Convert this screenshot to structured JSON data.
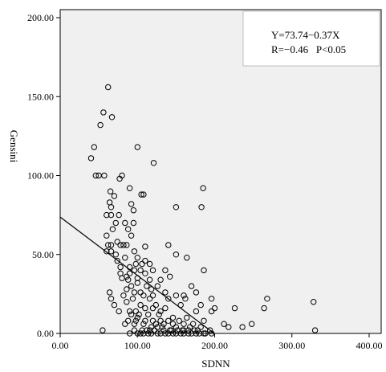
{
  "chart_data": {
    "type": "scatter",
    "title": "",
    "xlabel": "SDNN",
    "ylabel": "Gensini",
    "xlim": [
      0,
      400
    ],
    "ylim": [
      0,
      200
    ],
    "x_ticks": [
      "0.00",
      "100.00",
      "200.00",
      "300.00",
      "400.00"
    ],
    "y_ticks": [
      "0.00",
      "50.00",
      "100.00",
      "150.00",
      "200.00"
    ],
    "grid": false,
    "plot_background": "#f0f0f0",
    "marker_color": "#000000",
    "annotation": {
      "equation": "Y=73.74−0.37X",
      "stats": "R=−0.46   P<0.05",
      "placement": "top-right"
    },
    "regression_line": {
      "intercept": 73.74,
      "slope": -0.37,
      "x_range": [
        0,
        199.3
      ]
    },
    "points": [
      [
        62,
        156
      ],
      [
        56,
        140
      ],
      [
        67,
        137
      ],
      [
        52,
        132
      ],
      [
        44,
        118
      ],
      [
        100,
        118
      ],
      [
        121,
        108
      ],
      [
        40,
        111
      ],
      [
        46,
        100
      ],
      [
        50,
        100
      ],
      [
        57,
        100
      ],
      [
        80,
        100
      ],
      [
        77,
        98
      ],
      [
        65,
        90
      ],
      [
        90,
        92
      ],
      [
        185,
        92
      ],
      [
        70,
        87
      ],
      [
        105,
        88
      ],
      [
        108,
        88
      ],
      [
        64,
        83
      ],
      [
        66,
        80
      ],
      [
        92,
        82
      ],
      [
        95,
        78
      ],
      [
        150,
        80
      ],
      [
        183,
        80
      ],
      [
        60,
        75
      ],
      [
        66,
        75
      ],
      [
        76,
        75
      ],
      [
        72,
        70
      ],
      [
        84,
        70
      ],
      [
        95,
        70
      ],
      [
        88,
        66
      ],
      [
        68,
        66
      ],
      [
        60,
        62
      ],
      [
        92,
        62
      ],
      [
        74,
        58
      ],
      [
        62,
        56
      ],
      [
        66,
        56
      ],
      [
        82,
        56
      ],
      [
        78,
        56
      ],
      [
        86,
        56
      ],
      [
        110,
        55
      ],
      [
        140,
        56
      ],
      [
        60,
        52
      ],
      [
        96,
        52
      ],
      [
        66,
        52
      ],
      [
        72,
        50
      ],
      [
        84,
        48
      ],
      [
        100,
        48
      ],
      [
        150,
        50
      ],
      [
        164,
        48
      ],
      [
        74,
        46
      ],
      [
        90,
        42
      ],
      [
        106,
        44
      ],
      [
        116,
        44
      ],
      [
        96,
        40
      ],
      [
        104,
        40
      ],
      [
        120,
        40
      ],
      [
        136,
        40
      ],
      [
        186,
        40
      ],
      [
        78,
        38
      ],
      [
        90,
        38
      ],
      [
        110,
        38
      ],
      [
        80,
        35
      ],
      [
        100,
        35
      ],
      [
        116,
        34
      ],
      [
        142,
        36
      ],
      [
        130,
        34
      ],
      [
        170,
        30
      ],
      [
        176,
        26
      ],
      [
        64,
        26
      ],
      [
        86,
        28
      ],
      [
        104,
        26
      ],
      [
        112,
        30
      ],
      [
        136,
        26
      ],
      [
        150,
        24
      ],
      [
        160,
        24
      ],
      [
        196,
        22
      ],
      [
        66,
        22
      ],
      [
        94,
        22
      ],
      [
        116,
        22
      ],
      [
        140,
        22
      ],
      [
        162,
        22
      ],
      [
        182,
        18
      ],
      [
        200,
        16
      ],
      [
        70,
        18
      ],
      [
        86,
        20
      ],
      [
        104,
        18
      ],
      [
        124,
        18
      ],
      [
        136,
        16
      ],
      [
        156,
        18
      ],
      [
        176,
        14
      ],
      [
        196,
        14
      ],
      [
        226,
        16
      ],
      [
        268,
        22
      ],
      [
        264,
        16
      ],
      [
        76,
        14
      ],
      [
        90,
        14
      ],
      [
        102,
        12
      ],
      [
        114,
        12
      ],
      [
        128,
        12
      ],
      [
        146,
        10
      ],
      [
        164,
        10
      ],
      [
        186,
        8
      ],
      [
        100,
        10
      ],
      [
        140,
        8
      ],
      [
        154,
        8
      ],
      [
        172,
        6
      ],
      [
        212,
        6
      ],
      [
        248,
        6
      ],
      [
        328,
        20
      ],
      [
        330,
        2
      ],
      [
        55,
        2
      ],
      [
        84,
        6
      ],
      [
        96,
        6
      ],
      [
        108,
        6
      ],
      [
        118,
        4
      ],
      [
        126,
        4
      ],
      [
        134,
        2
      ],
      [
        144,
        2
      ],
      [
        150,
        4
      ],
      [
        158,
        2
      ],
      [
        166,
        2
      ],
      [
        174,
        2
      ],
      [
        182,
        4
      ],
      [
        194,
        2
      ],
      [
        218,
        4
      ],
      [
        236,
        4
      ],
      [
        112,
        2
      ],
      [
        122,
        2
      ],
      [
        132,
        4
      ],
      [
        142,
        2
      ],
      [
        152,
        2
      ],
      [
        160,
        2
      ],
      [
        168,
        4
      ],
      [
        178,
        2
      ],
      [
        100,
        0
      ],
      [
        108,
        0
      ],
      [
        118,
        0
      ],
      [
        130,
        0
      ],
      [
        140,
        0
      ],
      [
        150,
        0
      ],
      [
        160,
        0
      ],
      [
        170,
        0
      ],
      [
        180,
        0
      ],
      [
        188,
        0
      ],
      [
        196,
        0
      ],
      [
        90,
        0
      ],
      [
        104,
        0
      ],
      [
        114,
        0
      ],
      [
        126,
        0
      ],
      [
        136,
        0
      ],
      [
        146,
        0
      ],
      [
        156,
        0
      ],
      [
        166,
        0
      ],
      [
        176,
        0
      ],
      [
        186,
        0
      ],
      [
        96,
        2
      ],
      [
        106,
        2
      ],
      [
        116,
        2
      ],
      [
        124,
        6
      ],
      [
        134,
        6
      ],
      [
        146,
        6
      ],
      [
        160,
        6
      ],
      [
        88,
        8
      ],
      [
        98,
        8
      ],
      [
        110,
        8
      ],
      [
        120,
        8
      ],
      [
        130,
        8
      ],
      [
        92,
        12
      ],
      [
        110,
        16
      ],
      [
        120,
        16
      ],
      [
        130,
        14
      ],
      [
        98,
        14
      ],
      [
        82,
        24
      ],
      [
        96,
        26
      ],
      [
        108,
        24
      ],
      [
        120,
        24
      ],
      [
        126,
        30
      ],
      [
        118,
        28
      ],
      [
        92,
        30
      ],
      [
        100,
        32
      ],
      [
        88,
        34
      ],
      [
        110,
        46
      ],
      [
        98,
        44
      ],
      [
        78,
        42
      ],
      [
        86,
        36
      ]
    ]
  }
}
